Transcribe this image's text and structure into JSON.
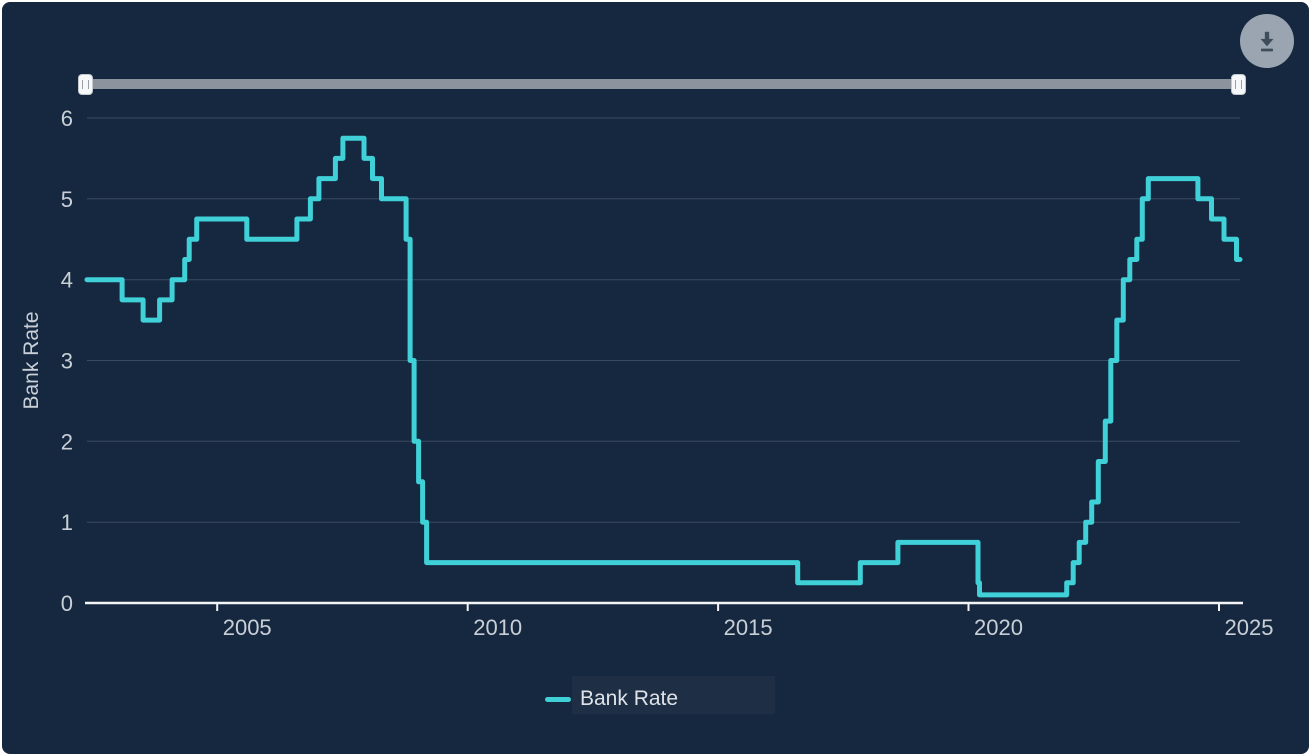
{
  "colors": {
    "background": "#16283F",
    "frame": "#FFFFFF",
    "series_line": "#3FD0D8",
    "gridline": "#3A4B61",
    "axis": "#F2F4F6",
    "tick_label": "#C9CFD6",
    "axis_title": "#C9CFD6",
    "slider_track": "#8C939D",
    "download_circle": "#9AA5B1",
    "download_glyph": "#3E4C5B"
  },
  "icons": {
    "download": "download-icon",
    "slider_grip": "grip-icon"
  },
  "legend": {
    "items": [
      {
        "label": "Bank Rate",
        "color": "#3FD0D8"
      }
    ]
  },
  "chart_data": {
    "type": "line",
    "step": true,
    "title": "",
    "xlabel": "",
    "ylabel": "Bank Rate",
    "xlim": [
      2002.4,
      2025.42
    ],
    "ylim": [
      0,
      6
    ],
    "x_ticks": [
      2005,
      2010,
      2015,
      2020,
      2025
    ],
    "x_tick_labels": [
      "2005",
      "2010",
      "2015",
      "2020",
      "2025"
    ],
    "y_ticks": [
      0,
      1,
      2,
      3,
      4,
      5,
      6
    ],
    "y_tick_labels": [
      "0",
      "1",
      "2",
      "3",
      "4",
      "5",
      "6"
    ],
    "grid": "horizontal",
    "legend_position": "bottom-center",
    "series": [
      {
        "name": "Bank Rate",
        "color": "#3FD0D8",
        "points": [
          [
            2002.4,
            4.0
          ],
          [
            2003.1,
            3.75
          ],
          [
            2003.52,
            3.5
          ],
          [
            2003.85,
            3.75
          ],
          [
            2004.1,
            4.0
          ],
          [
            2004.35,
            4.25
          ],
          [
            2004.44,
            4.5
          ],
          [
            2004.59,
            4.75
          ],
          [
            2005.59,
            4.5
          ],
          [
            2006.59,
            4.75
          ],
          [
            2006.86,
            5.0
          ],
          [
            2007.03,
            5.25
          ],
          [
            2007.36,
            5.5
          ],
          [
            2007.51,
            5.75
          ],
          [
            2007.93,
            5.5
          ],
          [
            2008.1,
            5.25
          ],
          [
            2008.28,
            5.0
          ],
          [
            2008.77,
            4.5
          ],
          [
            2008.85,
            3.0
          ],
          [
            2008.93,
            2.0
          ],
          [
            2009.02,
            1.5
          ],
          [
            2009.1,
            1.0
          ],
          [
            2009.18,
            0.5
          ],
          [
            2016.59,
            0.25
          ],
          [
            2017.84,
            0.5
          ],
          [
            2018.59,
            0.75
          ],
          [
            2020.19,
            0.25
          ],
          [
            2020.22,
            0.1
          ],
          [
            2021.96,
            0.25
          ],
          [
            2022.09,
            0.5
          ],
          [
            2022.21,
            0.75
          ],
          [
            2022.34,
            1.0
          ],
          [
            2022.46,
            1.25
          ],
          [
            2022.59,
            1.75
          ],
          [
            2022.73,
            2.25
          ],
          [
            2022.84,
            3.0
          ],
          [
            2022.96,
            3.5
          ],
          [
            2023.09,
            4.0
          ],
          [
            2023.22,
            4.25
          ],
          [
            2023.36,
            4.5
          ],
          [
            2023.47,
            5.0
          ],
          [
            2023.59,
            5.25
          ],
          [
            2024.58,
            5.0
          ],
          [
            2024.85,
            4.75
          ],
          [
            2025.1,
            4.5
          ],
          [
            2025.35,
            4.25
          ]
        ]
      }
    ]
  }
}
